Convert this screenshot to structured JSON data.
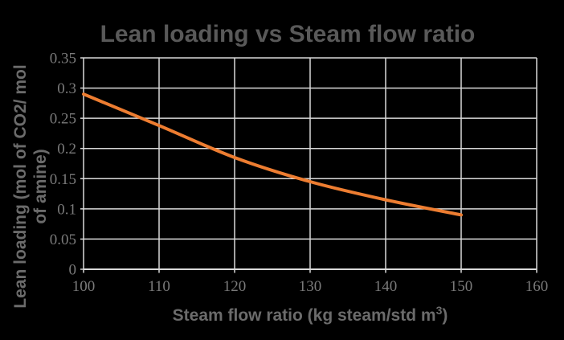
{
  "chart_data": {
    "type": "line",
    "title": "Lean loading vs Steam flow ratio",
    "xlabel_main": "Steam flow ratio (kg steam/std m",
    "xlabel_sup": "3",
    "xlabel_close": ")",
    "ylabel_line1": "Lean loading (mol of CO2/ mol",
    "ylabel_line2": "of amine)",
    "x": [
      100,
      110,
      120,
      130,
      140,
      150
    ],
    "y": [
      0.29,
      0.238,
      0.185,
      0.145,
      0.115,
      0.09
    ],
    "xlim": [
      100,
      160
    ],
    "ylim": [
      0,
      0.35
    ],
    "x_ticks": [
      100,
      110,
      120,
      130,
      140,
      150,
      160
    ],
    "x_tick_labels": [
      "100",
      "110",
      "120",
      "130",
      "140",
      "150",
      "160"
    ],
    "y_ticks": [
      0,
      0.05,
      0.1,
      0.15,
      0.2,
      0.25,
      0.3,
      0.35
    ],
    "y_tick_labels": [
      "0",
      "0.05",
      "0.1",
      "0.15",
      "0.2",
      "0.25",
      "0.3",
      "0.35"
    ],
    "grid": true,
    "legend": "none",
    "smooth": true
  },
  "style": {
    "background": "#000000",
    "series_color": "#ED7D31",
    "gridline_color": "#D9D9D9",
    "axis_line_color": "#D9D9D9",
    "title_color": "#595959",
    "axis_title_color": "#6b6b6b",
    "tick_label_color": "#7a7a7a"
  }
}
